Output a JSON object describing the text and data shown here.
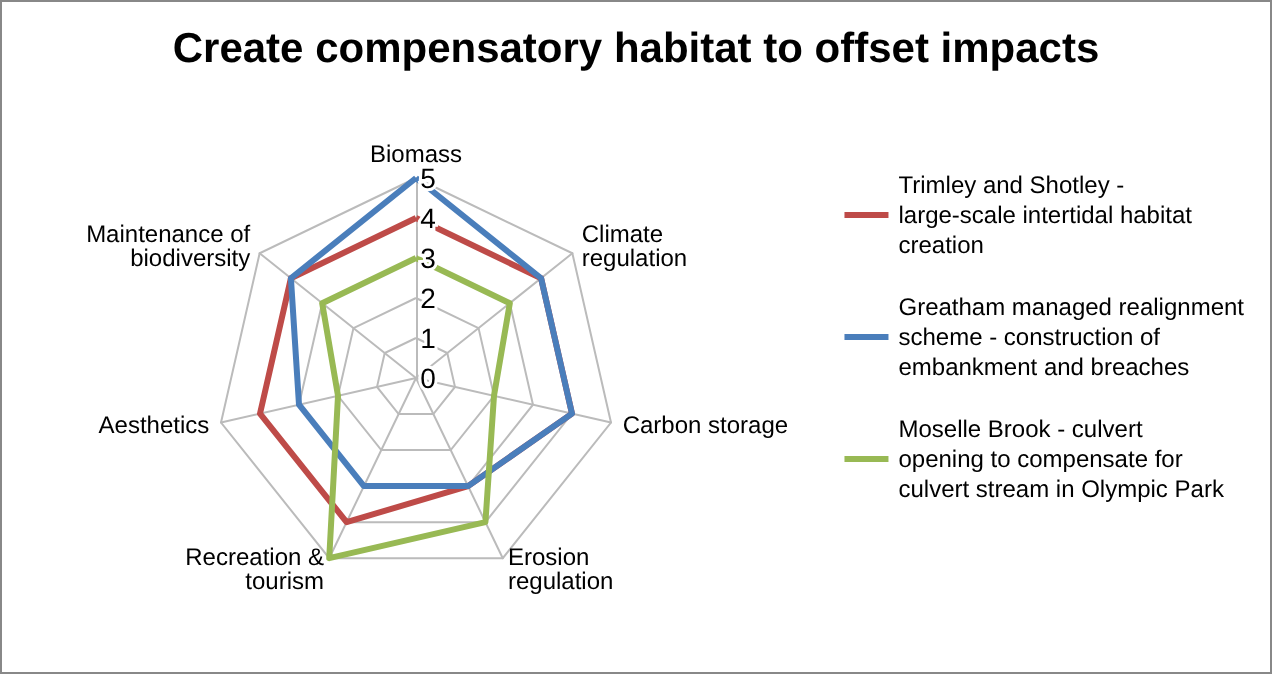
{
  "chart_data": {
    "type": "radar",
    "title": "Create compensatory habitat to offset impacts",
    "categories": [
      "Biomass",
      "Climate regulation",
      "Carbon storage",
      "Erosion regulation",
      "Recreation & tourism",
      "Aesthetics",
      "Maintenance of biodiversity"
    ],
    "series": [
      {
        "name": "Trimley and Shotley - large-scale intertidal habitat creation",
        "color": "#be4b48",
        "values": [
          4,
          4,
          4,
          3,
          4,
          4,
          4
        ]
      },
      {
        "name": "Greatham managed realignment scheme - construction of embankment and breaches",
        "color": "#4a7ebb",
        "values": [
          5,
          4,
          4,
          3,
          3,
          3,
          4
        ]
      },
      {
        "name": "Moselle Brook - culvert opening to compensate for culvert stream in Olympic Park",
        "color": "#98b954",
        "values": [
          3,
          3,
          2,
          4,
          5,
          2,
          3
        ]
      }
    ],
    "ylim": [
      0,
      5
    ],
    "yticks": [
      0,
      1,
      2,
      3,
      4,
      5
    ],
    "legend": "right",
    "marker": "none"
  }
}
